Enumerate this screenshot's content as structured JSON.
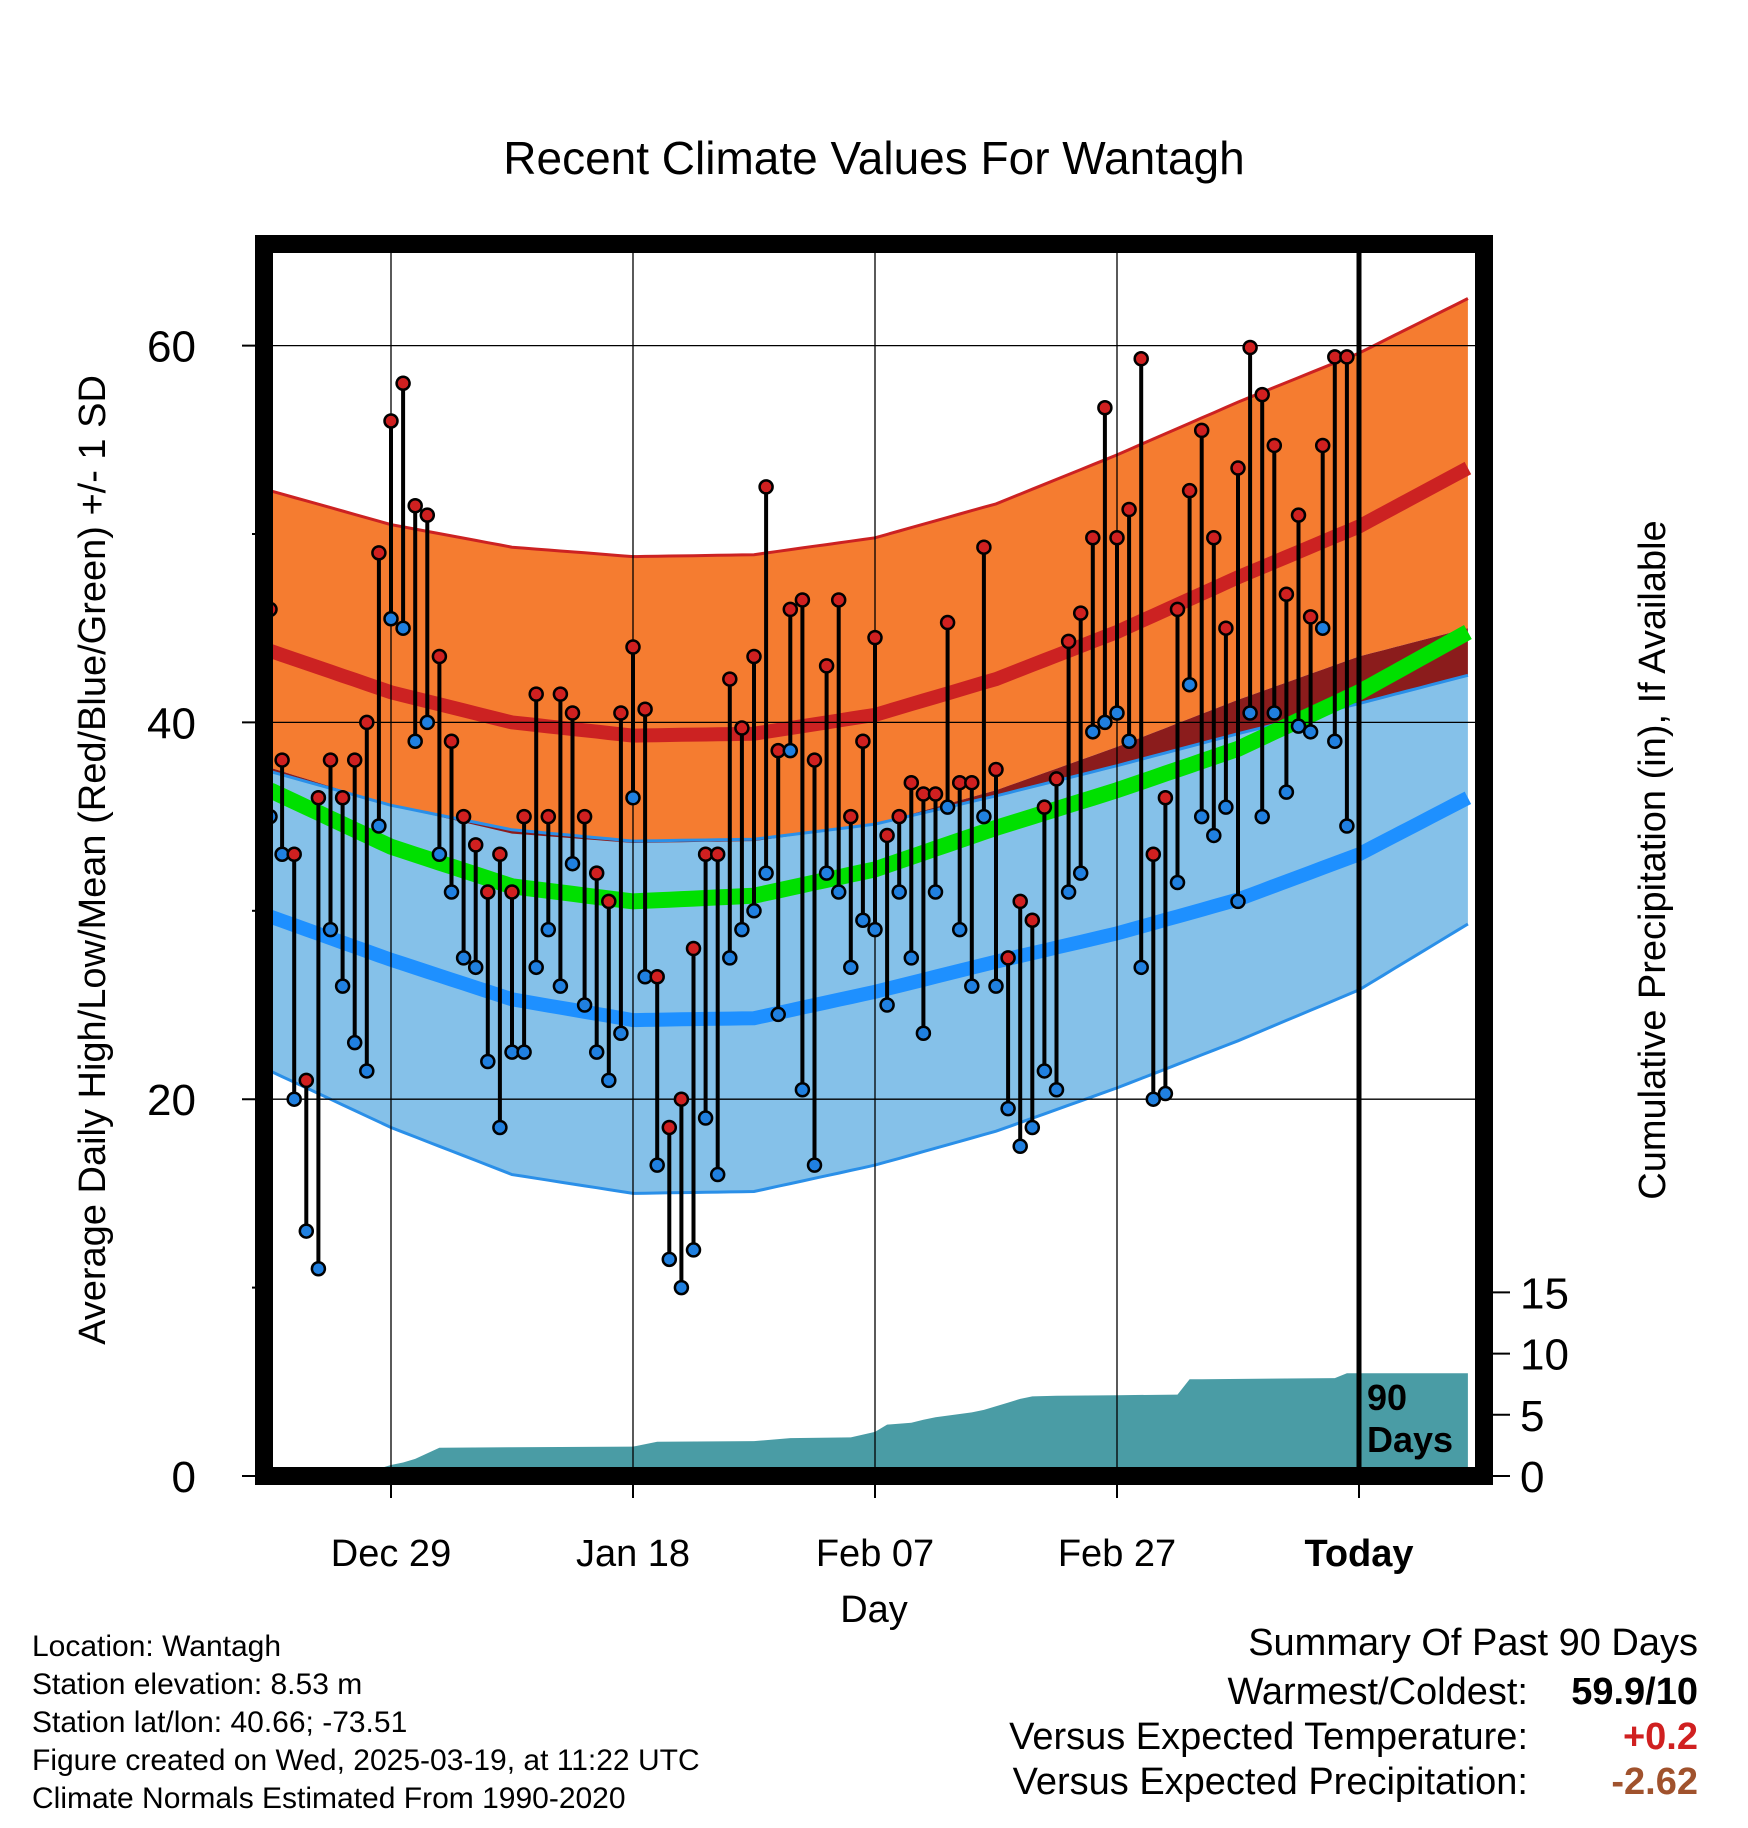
{
  "chart_data": {
    "type": "line",
    "title": "Recent Climate Values For Wantagh",
    "xlabel": "Day",
    "ylabel": "Average Daily High/Low/Mean (Red/Blue/Green) +/- 1 SD",
    "y2label": "Cumulative Precipitation (in), If Available",
    "x_tick_labels": [
      "Dec 29",
      "Jan 18",
      "Feb 07",
      "Feb 27",
      "Today"
    ],
    "x_tick_days": [
      10,
      30,
      50,
      70,
      90
    ],
    "xlim": [
      0,
      99
    ],
    "y_ticks": [
      0,
      20,
      40,
      60
    ],
    "ylim": [
      0,
      65
    ],
    "y2_ticks": [
      0,
      5,
      10,
      15
    ],
    "y2lim": [
      0,
      31
    ],
    "today_marker": "90 Days",
    "grid": true,
    "normals": {
      "days": [
        0,
        10,
        20,
        30,
        40,
        50,
        60,
        70,
        80,
        90,
        99
      ],
      "high_upper": [
        52.3,
        50.5,
        49.3,
        48.8,
        48.9,
        49.8,
        51.6,
        54.2,
        57.0,
        59.6,
        62.5
      ],
      "high_mean": [
        43.8,
        41.6,
        40.0,
        39.3,
        39.4,
        40.4,
        42.3,
        44.8,
        47.7,
        50.4,
        53.5
      ],
      "high_lower": [
        37.6,
        35.6,
        34.1,
        33.6,
        33.7,
        34.6,
        36.4,
        38.7,
        41.2,
        43.5,
        45.0
      ],
      "mean": [
        36.4,
        33.4,
        31.3,
        30.5,
        30.8,
        32.2,
        34.4,
        36.4,
        38.6,
        41.6,
        44.8
      ],
      "low_upper": [
        37.4,
        35.6,
        34.3,
        33.7,
        33.8,
        34.6,
        36.1,
        37.7,
        39.4,
        41.0,
        42.5
      ],
      "low_mean": [
        29.7,
        27.4,
        25.3,
        24.2,
        24.3,
        25.7,
        27.3,
        28.8,
        30.6,
        33.0,
        36.0
      ],
      "low_lower": [
        21.5,
        18.5,
        16.0,
        15.0,
        15.1,
        16.5,
        18.3,
        20.6,
        23.1,
        25.8,
        29.3
      ]
    },
    "series": [
      {
        "name": "High",
        "color": "#d02020",
        "values": [
          46,
          38,
          33,
          21,
          36,
          38,
          36,
          38,
          40,
          49,
          56,
          58,
          51.5,
          51,
          43.5,
          39,
          35,
          33.5,
          31,
          33,
          31,
          35,
          41.5,
          35,
          41.5,
          40.5,
          35,
          32,
          30.5,
          40.5,
          44,
          40.7,
          26.5,
          18.5,
          20,
          28,
          33,
          33,
          42.3,
          39.7,
          43.5,
          52.5,
          38.5,
          46,
          46.5,
          38,
          43,
          46.5,
          35,
          39,
          44.5,
          34,
          35,
          36.8,
          36.2,
          36.2,
          45.3,
          36.8,
          36.8,
          49.3,
          37.5,
          27.5,
          30.5,
          29.5,
          35.5,
          37,
          44.3,
          45.8,
          49.8,
          56.7,
          49.8,
          51.3,
          59.3,
          33,
          36,
          46,
          52.3,
          55.5,
          49.8,
          45,
          53.5,
          59.9,
          57.4,
          54.7,
          46.8,
          51,
          45.6,
          54.7,
          59.4,
          59.4
        ]
      },
      {
        "name": "Low",
        "color": "#2080e0",
        "values": [
          35,
          33,
          20,
          13,
          11,
          29,
          26,
          23,
          21.5,
          34.5,
          45.5,
          45,
          39,
          40,
          33,
          31,
          27.5,
          27,
          22,
          18.5,
          22.5,
          22.5,
          27,
          29,
          26,
          32.5,
          25,
          22.5,
          21,
          23.5,
          36,
          26.5,
          16.5,
          11.5,
          10,
          12,
          19,
          16,
          27.5,
          29,
          30,
          32,
          24.5,
          38.5,
          20.5,
          16.5,
          32,
          31,
          27,
          29.5,
          29,
          25,
          31,
          27.5,
          23.5,
          31,
          35.5,
          29,
          26,
          35,
          26,
          19.5,
          17.5,
          18.5,
          21.5,
          20.5,
          31,
          32,
          39.5,
          40,
          40.5,
          39,
          27,
          20,
          20.3,
          31.5,
          42,
          35,
          34,
          35.5,
          30.5,
          40.5,
          35,
          40.5,
          36.3,
          39.8,
          39.5,
          45,
          39,
          34.5
        ]
      }
    ],
    "precipitation": {
      "days": [
        8,
        9,
        10,
        11,
        12,
        14,
        20,
        30,
        32,
        40,
        43,
        48,
        50,
        51,
        53,
        54,
        55,
        58,
        59,
        60,
        61,
        62,
        63,
        65,
        70,
        75,
        76,
        77,
        88,
        89,
        90,
        99
      ],
      "values": [
        0,
        0.6,
        0.9,
        1.1,
        1.4,
        2.3,
        2.35,
        2.4,
        2.8,
        2.85,
        3.1,
        3.15,
        3.6,
        4.2,
        4.35,
        4.6,
        4.8,
        5.2,
        5.4,
        5.7,
        6.0,
        6.3,
        6.5,
        6.55,
        6.6,
        6.65,
        7.9,
        7.9,
        8.0,
        8.4,
        8.4,
        8.4
      ]
    },
    "colors": {
      "high_band": "#f57c30",
      "high_line": "#cc2222",
      "low_band": "#85c1e9",
      "low_line": "#1e90ff",
      "low_edge": "#2a8fe8",
      "mean_line": "#00e000",
      "overlap": "#8b1c1c",
      "precip": "#4a9ca5"
    }
  },
  "footer": {
    "location": "Location: Wantagh",
    "elevation": "Station elevation: 8.53 m",
    "latlon": "Station lat/lon: 40.66; -73.51",
    "created": "Figure created on Wed, 2025-03-19, at 11:22 UTC",
    "normals": "Climate Normals Estimated From 1990-2020"
  },
  "summary": {
    "heading": "Summary Of Past 90 Days",
    "warm_cold_label": "Warmest/Coldest:",
    "warm_cold_value": "59.9/10",
    "temp_label": "Versus Expected Temperature:",
    "temp_value": "+0.2",
    "temp_color": "#d02020",
    "precip_label": "Versus Expected Precipitation:",
    "precip_value": "-2.62",
    "precip_color": "#a0522d"
  }
}
